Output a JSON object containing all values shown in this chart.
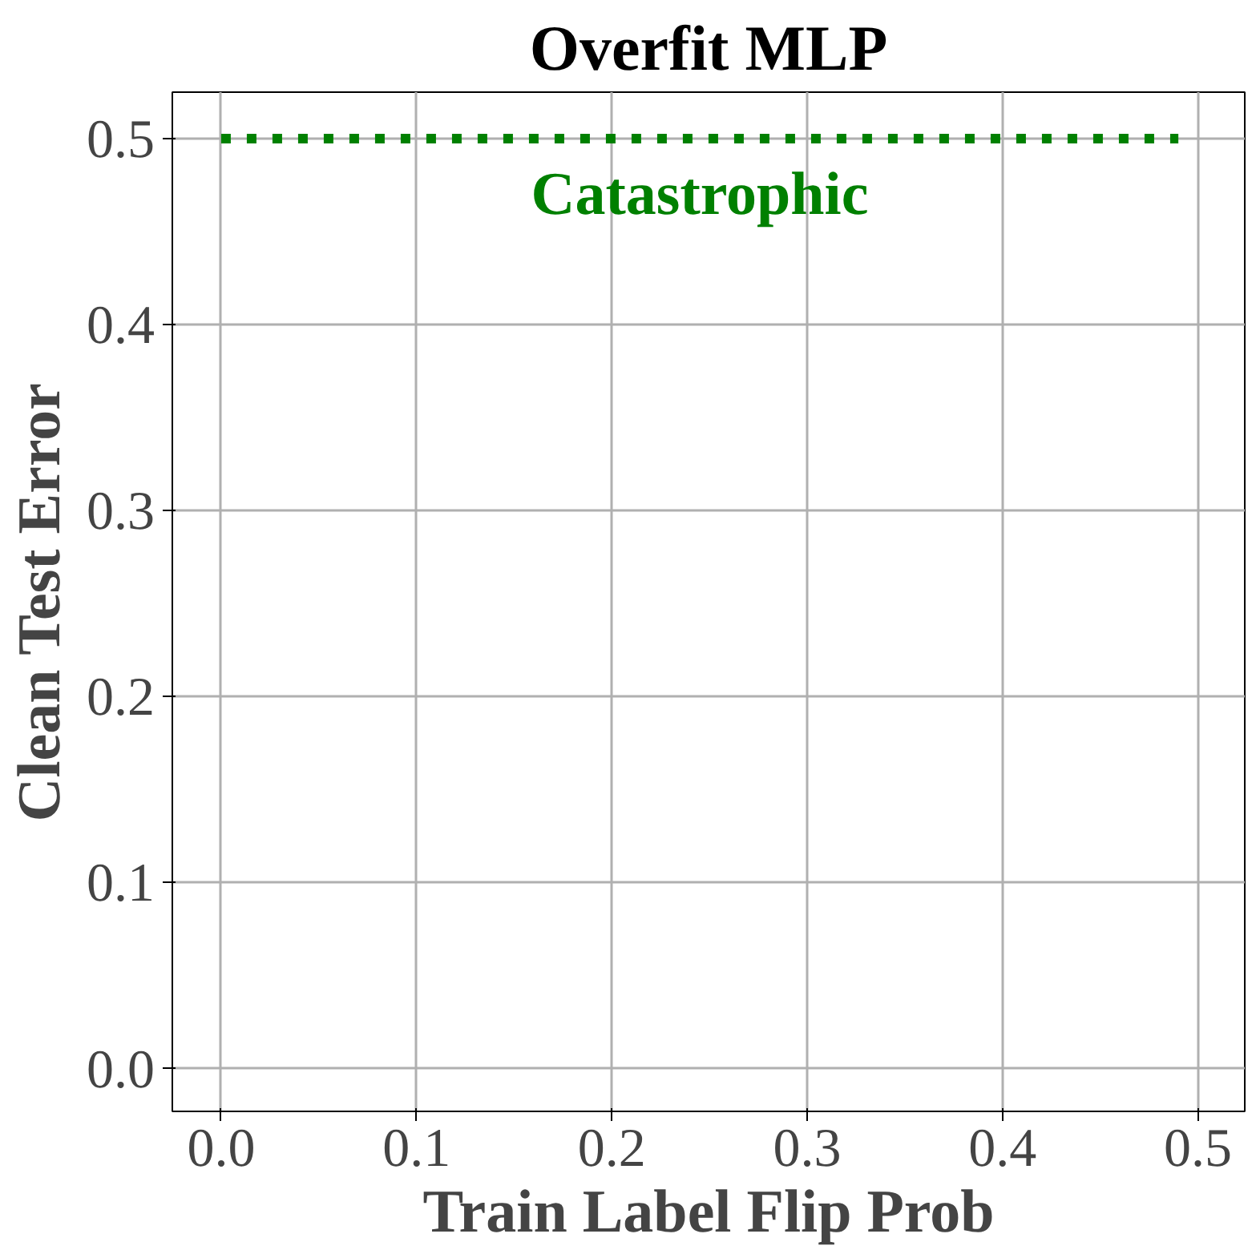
{
  "chart_data": {
    "type": "line",
    "title": "Overfit MLP",
    "xlabel": "Train Label Flip Prob",
    "ylabel": "Clean Test Error",
    "series": [
      {
        "name": "Catastrophic",
        "color": "#008000",
        "x": [
          0.0,
          0.49
        ],
        "values": [
          0.5,
          0.5
        ]
      }
    ],
    "line_style": "dotted",
    "grid": true,
    "xlim": [
      -0.025,
      0.524
    ],
    "xticks": [
      {
        "value": 0,
        "label": "0.0"
      },
      0.1,
      0.2,
      0.3,
      0.4,
      0.5
    ],
    "ylim": [
      -0.023,
      0.525
    ],
    "yticks": [
      {
        "value": 0,
        "label": "0.0"
      },
      0.1,
      0.2,
      0.3,
      0.4,
      0.5
    ]
  }
}
